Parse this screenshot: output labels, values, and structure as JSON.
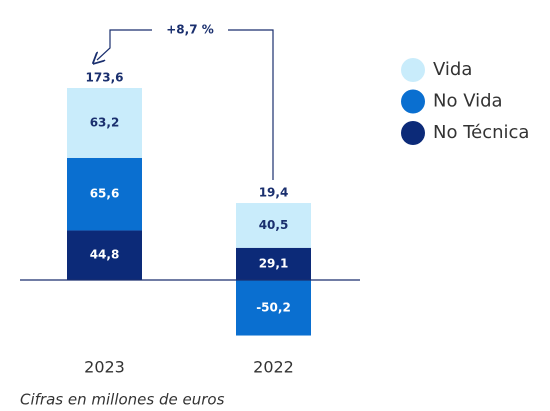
{
  "chart_data": {
    "type": "bar",
    "stacked": true,
    "categories": [
      "2023",
      "2022"
    ],
    "series": [
      {
        "name": "Vida",
        "color": "#c9ecfb",
        "values": [
          63.2,
          40.5
        ],
        "value_labels": [
          "63,2",
          "40,5"
        ]
      },
      {
        "name": "No Vida",
        "color": "#0a6fd0",
        "values": [
          65.6,
          -50.2
        ],
        "value_labels": [
          "65,6",
          "-50,2"
        ]
      },
      {
        "name": "No Técnica",
        "color": "#0c2a78",
        "values": [
          44.8,
          29.1
        ],
        "value_labels": [
          "44,8",
          "29,1"
        ]
      }
    ],
    "totals": [
      173.6,
      19.4
    ],
    "total_labels": [
      "173,6",
      "19,4"
    ],
    "annotation": "+8,7 %",
    "footnote": "Cifras en millones de euros"
  }
}
